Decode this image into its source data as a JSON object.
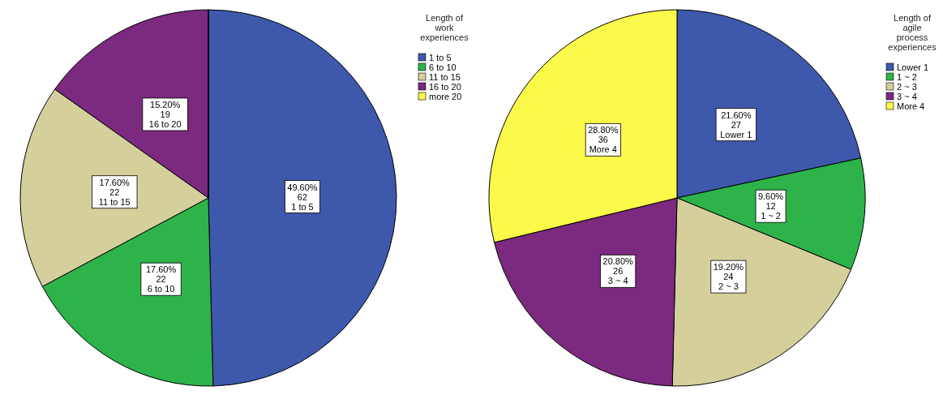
{
  "chart_data": [
    {
      "type": "pie",
      "legend_title": "Length of work experiences",
      "legend": "top right",
      "categories": [
        "1 to 5",
        "6 to 10",
        "11 to 15",
        "16 to 20",
        "more 20"
      ],
      "values": [
        62,
        22,
        22,
        19,
        0
      ],
      "colors": [
        "#3e58ac",
        "#2db34a",
        "#d5cf9c",
        "#7b2a7f",
        "#fbf94a"
      ],
      "value_labels": [
        "49.60%\n62\n1 to 5",
        "17.60%\n22\n6 to 10",
        "17.60%\n22\n11 to 15",
        "15.20%\n19\n16 to 20",
        null
      ]
    },
    {
      "type": "pie",
      "legend_title": "Length of agile process experiences",
      "legend": "top right",
      "categories": [
        "Lower 1",
        "1 ~ 2",
        "2 ~ 3",
        "3 ~ 4",
        "More 4"
      ],
      "values": [
        27,
        12,
        24,
        26,
        36
      ],
      "colors": [
        "#3e58ac",
        "#2db34a",
        "#d5cf9c",
        "#7b2a7f",
        "#fbf94a"
      ],
      "value_labels": [
        "21.60%\n27\nLower 1",
        "9.60%\n12\n1 ~ 2",
        "19.20%\n24\n2 ~ 3",
        "20.80%\n26\n3 ~ 4",
        "28.80%\n36\nMore 4"
      ]
    }
  ]
}
